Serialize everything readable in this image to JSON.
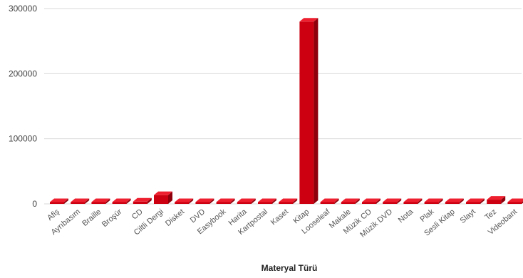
{
  "chart_data": {
    "type": "bar",
    "title": "",
    "xlabel": "Materyal Türü",
    "ylabel": "",
    "ylim": [
      0,
      300000
    ],
    "yticks": [
      0,
      100000,
      200000,
      300000
    ],
    "ytick_labels": [
      "0",
      "100000",
      "200000",
      "300000"
    ],
    "grid": true,
    "legend": "none",
    "categories": [
      "Afiş",
      "Ayrıbasım",
      "Braille",
      "Broşür",
      "CD",
      "Ciltli Dergi",
      "Disket",
      "DVD",
      "Easybook",
      "Harita",
      "Kartpostal",
      "Kaset",
      "Kitap",
      "Looseleaf",
      "Makale",
      "Müzik CD",
      "Müzik DVD",
      "Nota",
      "Plak",
      "Sesli Kitap",
      "Slayt",
      "Tez",
      "Videobant"
    ],
    "series": [
      {
        "values": [
          10,
          20,
          5,
          20,
          3500,
          13500,
          80,
          1500,
          5,
          40,
          60,
          200,
          280000,
          10,
          50,
          300,
          30,
          20,
          15,
          60,
          20,
          6500,
          300
        ]
      }
    ],
    "colors": {
      "bar_front": "#cc0010",
      "bar_side": "#8e000b",
      "bar_top": "#ee2030",
      "grid": "#d9d9d9"
    }
  }
}
